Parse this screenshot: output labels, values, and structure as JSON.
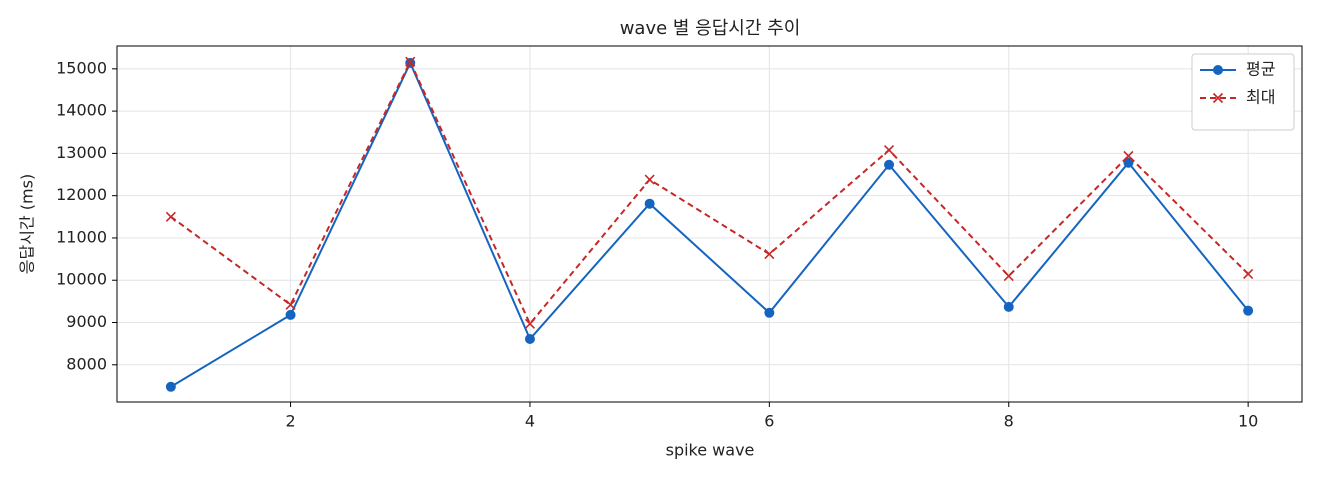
{
  "chart_data": {
    "type": "line",
    "title": "wave 별 응답시간 추이",
    "xlabel": "spike wave",
    "ylabel": "응답시간 (ms)",
    "x": [
      1,
      2,
      3,
      4,
      5,
      6,
      7,
      8,
      9,
      10
    ],
    "series": [
      {
        "name": "평균",
        "color": "#1565c0",
        "marker": "o",
        "linestyle": "solid",
        "values": [
          7480,
          9180,
          15140,
          8610,
          11810,
          9230,
          12730,
          9370,
          12780,
          9280
        ]
      },
      {
        "name": "최대",
        "color": "#c62828",
        "marker": "x",
        "linestyle": "dashed",
        "values": [
          11500,
          9420,
          15170,
          8970,
          12380,
          10620,
          13080,
          10100,
          12940,
          10150
        ]
      }
    ],
    "xlim": [
      0.55,
      10.45
    ],
    "xticks": [
      2,
      4,
      6,
      8,
      10
    ],
    "ylim": [
      7120,
      15540
    ],
    "yticks": [
      8000,
      9000,
      10000,
      11000,
      12000,
      13000,
      14000,
      15000
    ],
    "grid": true,
    "legend": "upper right"
  }
}
